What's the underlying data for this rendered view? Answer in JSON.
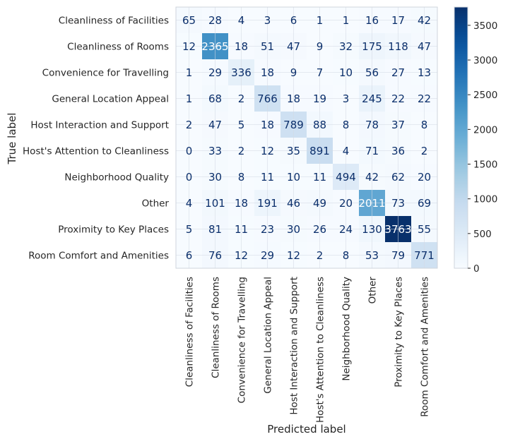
{
  "chart_data": {
    "type": "heatmap",
    "title": "",
    "xlabel": "Predicted label",
    "ylabel": "True label",
    "categories": [
      "Cleanliness of Facilities",
      "Cleanliness of Rooms",
      "Convenience for Travelling",
      "General Location Appeal",
      "Host Interaction and Support",
      "Host's Attention to Cleanliness",
      "Neighborhood Quality",
      "Other",
      "Proximity to Key Places",
      "Room Comfort and Amenities"
    ],
    "matrix": [
      [
        65,
        28,
        4,
        3,
        6,
        1,
        1,
        16,
        17,
        42
      ],
      [
        12,
        2365,
        18,
        51,
        47,
        9,
        32,
        175,
        118,
        47
      ],
      [
        1,
        29,
        336,
        18,
        9,
        7,
        10,
        56,
        27,
        13
      ],
      [
        1,
        68,
        2,
        766,
        18,
        19,
        3,
        245,
        22,
        22
      ],
      [
        2,
        47,
        5,
        18,
        789,
        88,
        8,
        78,
        37,
        8
      ],
      [
        0,
        33,
        2,
        12,
        35,
        891,
        4,
        71,
        36,
        2
      ],
      [
        0,
        30,
        8,
        11,
        10,
        11,
        494,
        42,
        62,
        20
      ],
      [
        4,
        101,
        18,
        191,
        46,
        49,
        20,
        2011,
        73,
        69
      ],
      [
        5,
        81,
        11,
        23,
        30,
        26,
        24,
        130,
        3763,
        55
      ],
      [
        6,
        76,
        12,
        29,
        12,
        2,
        8,
        53,
        79,
        771
      ]
    ],
    "colormap": "Blues",
    "color_range": [
      0,
      3763
    ],
    "colorbar_ticks": [
      0,
      500,
      1000,
      1500,
      2000,
      2500,
      3000,
      3500
    ],
    "grid": true,
    "colors": {
      "text_dark": "#0b2f6b",
      "text_light": "#ffffff",
      "axis_text": "#262626",
      "grid": "#d5dbe5"
    }
  }
}
